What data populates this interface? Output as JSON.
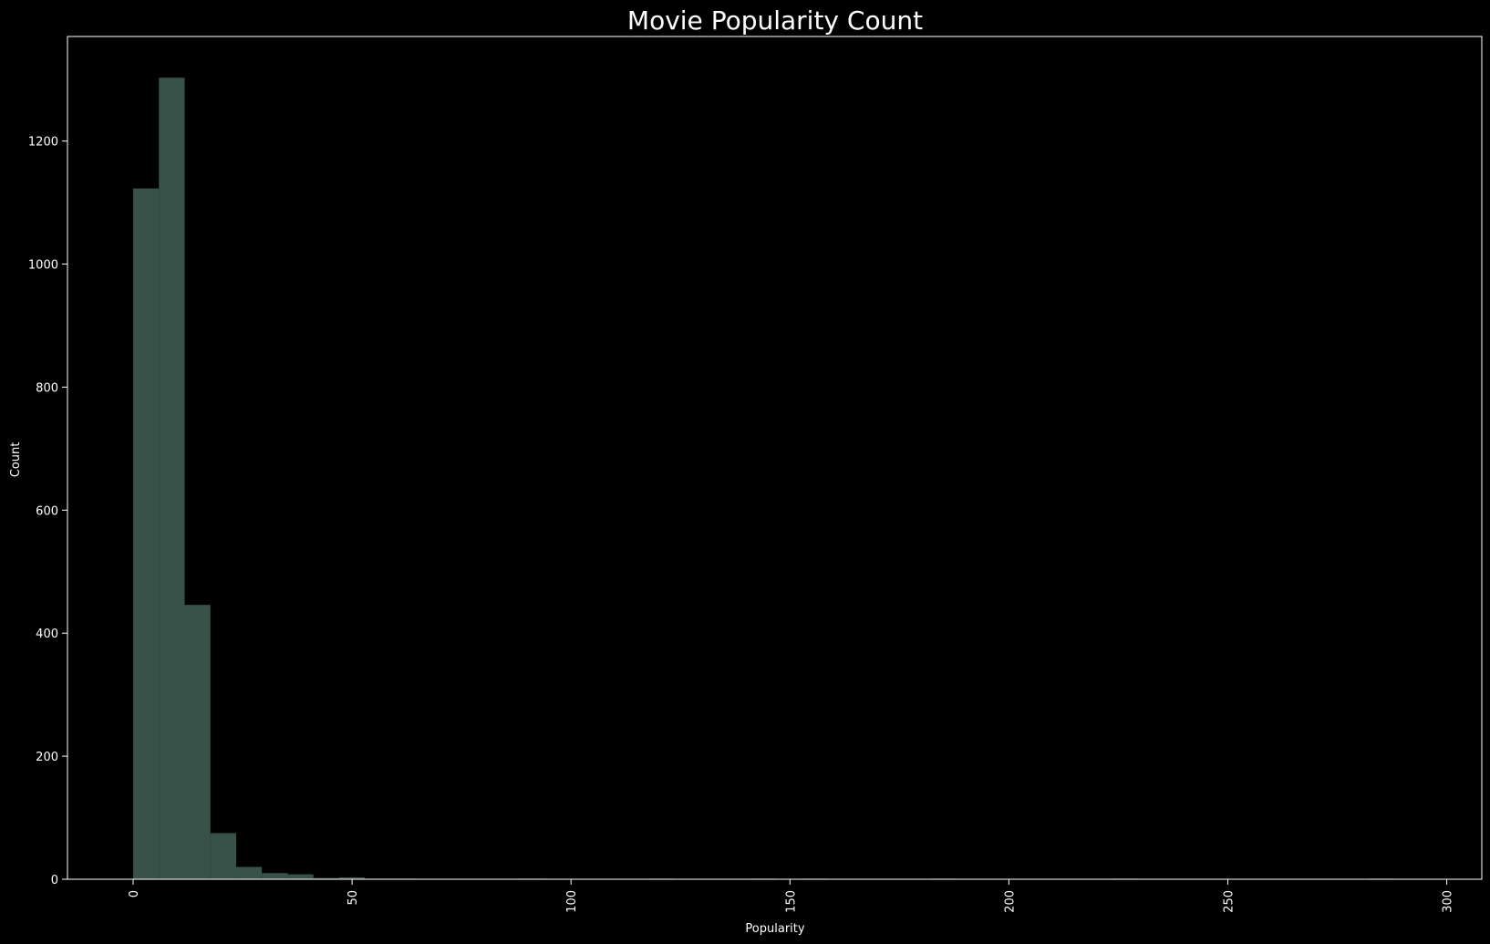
{
  "chart_data": {
    "type": "bar",
    "title": "Movie Popularity Count",
    "xlabel": "Popularity",
    "ylabel": "Count",
    "xlim": [
      -15,
      308
    ],
    "ylim": [
      0,
      1370
    ],
    "bin_width": 5.88,
    "bins": [
      {
        "x0": 0.0,
        "count": 1123
      },
      {
        "x0": 5.88,
        "count": 1303
      },
      {
        "x0": 11.76,
        "count": 446
      },
      {
        "x0": 17.64,
        "count": 75
      },
      {
        "x0": 23.52,
        "count": 20
      },
      {
        "x0": 29.4,
        "count": 10
      },
      {
        "x0": 35.28,
        "count": 8
      },
      {
        "x0": 41.16,
        "count": 2
      },
      {
        "x0": 47.04,
        "count": 3
      },
      {
        "x0": 52.92,
        "count": 1
      },
      {
        "x0": 58.8,
        "count": 1
      },
      {
        "x0": 88.2,
        "count": 1
      },
      {
        "x0": 117.6,
        "count": 1
      },
      {
        "x0": 141.12,
        "count": 1
      },
      {
        "x0": 152.88,
        "count": 1
      },
      {
        "x0": 182.28,
        "count": 1
      },
      {
        "x0": 223.44,
        "count": 1
      },
      {
        "x0": 282.24,
        "count": 1
      }
    ],
    "xticks": [
      0,
      50,
      100,
      150,
      200,
      250,
      300
    ],
    "yticks": [
      0,
      200,
      400,
      600,
      800,
      1000,
      1200
    ],
    "grid": false,
    "legend": "none",
    "colors": {
      "background": "#000000",
      "bar": "#38524a",
      "axis": "#ffffff",
      "text": "#ffffff"
    }
  }
}
